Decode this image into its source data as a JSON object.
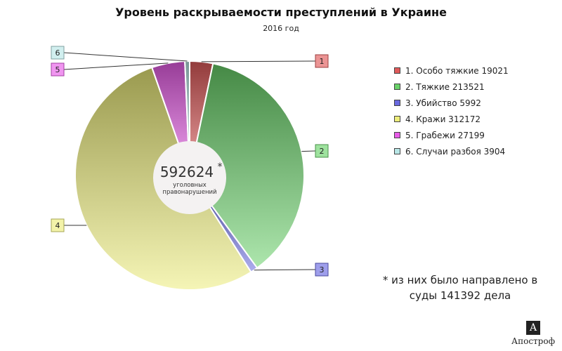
{
  "title": "Уровень раскрываемости преступлений в Украине",
  "subtitle": "2016 год",
  "center": {
    "total": "592624",
    "star": "*",
    "label_line1": "уголовных",
    "label_line2": "правонарушений"
  },
  "note_line1": "* из них было направлено в",
  "note_line2": "суды 141392 дела",
  "brand": {
    "mark": "A",
    "name": "Апостроф"
  },
  "colors": {
    "1": "#e05a5a",
    "2": "#6ad26a",
    "3": "#6a6ae0",
    "4": "#eded7a",
    "5": "#e85ce8",
    "6": "#b8e6e6"
  },
  "chart_data": {
    "type": "pie",
    "variant": "donut",
    "title": "Уровень раскрываемости преступлений в Украине",
    "subtitle": "2016 год",
    "legend_position": "right",
    "slices": [
      {
        "id": "1",
        "label": "1. Особо тяжкие 19021",
        "value": 19021
      },
      {
        "id": "2",
        "label": "2. Тяжкие 213521",
        "value": 213521
      },
      {
        "id": "3",
        "label": "3. Убийство 5992",
        "value": 5992
      },
      {
        "id": "4",
        "label": "4. Кражи 312172",
        "value": 312172
      },
      {
        "id": "5",
        "label": "5. Грабежи 27199",
        "value": 27199
      },
      {
        "id": "6",
        "label": "6. Случаи разбоя 3904",
        "value": 3904
      }
    ]
  }
}
